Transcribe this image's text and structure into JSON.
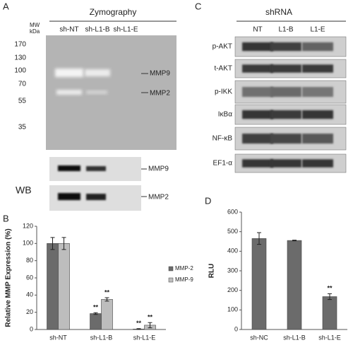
{
  "panel_labels": [
    "A",
    "B",
    "C",
    "D"
  ],
  "zymography": {
    "title": "Zymography",
    "mw_label": "MW\nkDa",
    "lanes": [
      "sh-NT",
      "sh-L1-B",
      "sh-L1-E"
    ],
    "markers": [
      170,
      130,
      100,
      70,
      55,
      35
    ],
    "bands": [
      "MMP9",
      "MMP2"
    ]
  },
  "wb": {
    "title": "WB",
    "bands": [
      "MMP9",
      "MMP2"
    ]
  },
  "blots_c": {
    "title": "shRNA",
    "lanes": [
      "NT",
      "L1-B",
      "L1-E"
    ],
    "rows": [
      "p-AKT",
      "t-AKT",
      "p-IKK",
      "IκBα",
      "NF-κB",
      "EF1-α"
    ]
  },
  "chart_data": [
    {
      "type": "bar",
      "y_label": "Relative MMP Expression (%)",
      "categories": [
        "sh-NT",
        "sh-L1-B",
        "sh-L1-E"
      ],
      "series": [
        {
          "name": "MMP-2",
          "color": "#6b6b6b",
          "values": [
            100,
            18.5,
            0.5
          ],
          "errors": [
            7,
            1,
            0.5
          ],
          "significance": [
            null,
            "**",
            "**"
          ]
        },
        {
          "name": "MMP-9",
          "color": "#bdbdbd",
          "values": [
            100,
            35,
            5
          ],
          "errors": [
            7,
            2,
            3
          ],
          "significance": [
            null,
            "**",
            "**"
          ]
        }
      ],
      "ylim": [
        0,
        120
      ],
      "yticks": [
        0,
        20,
        40,
        60,
        80,
        100,
        120
      ],
      "legend": "right"
    },
    {
      "type": "bar",
      "y_label": "RLU",
      "categories": [
        "sh-NC",
        "sh-L1-B",
        "sh-L1-E"
      ],
      "series": [
        {
          "color": "#6b6b6b",
          "values": [
            465,
            455,
            168
          ],
          "errors": [
            30,
            2,
            15
          ],
          "significance": [
            null,
            null,
            "**"
          ]
        }
      ],
      "ylim": [
        0,
        600
      ],
      "yticks": [
        0,
        100,
        200,
        300,
        400,
        500,
        600
      ]
    }
  ]
}
